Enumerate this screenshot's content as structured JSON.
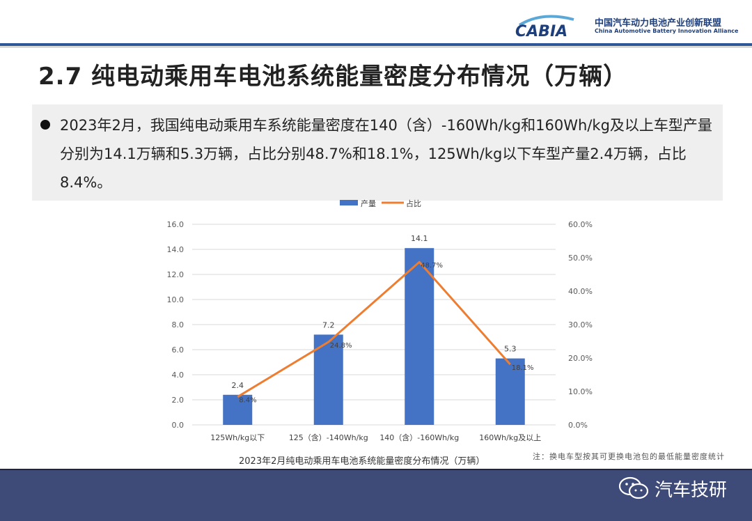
{
  "header": {
    "logo_mark": "CABIA",
    "logo_cn": "中国汽车动力电池产业创新联盟",
    "logo_en": "China Automotive Battery Innovation Alliance"
  },
  "page_title": "2.7 纯电动乘用车电池系统能量密度分布情况（万辆）",
  "summary": {
    "text": "2023年2月，我国纯电动乘用车系统能量密度在140（含）-160Wh/kg和160Wh/kg及以上车型产量分别为14.1万辆和5.3万辆，占比分别48.7%和18.1%，125Wh/kg以下车型产量2.4万辆，占比8.4%。"
  },
  "note": "注：换电车型按其可更换电池包的最低能量密度统计",
  "brand": {
    "name": "汽车技研"
  },
  "colors": {
    "bar": "#4472c4",
    "line": "#ed7d31",
    "header_rule": "#2d5597",
    "footer": "#3e4a78"
  },
  "chart_data": {
    "type": "bar",
    "title": "2023年2月纯电动乘用车电池系统能量密度分布情况（万辆）",
    "categories": [
      "125Wh/kg以下",
      "125（含）-140Wh/kg",
      "140（含）-160Wh/kg",
      "160Wh/kg及以上"
    ],
    "series": [
      {
        "name": "产量",
        "type": "bar",
        "axis": "left",
        "values": [
          2.4,
          7.2,
          14.1,
          5.3
        ],
        "labels": [
          "2.4",
          "7.2",
          "14.1",
          "5.3"
        ]
      },
      {
        "name": "占比",
        "type": "line",
        "axis": "right",
        "values": [
          8.4,
          24.8,
          48.7,
          18.1
        ],
        "labels": [
          "8.4%",
          "24.8%",
          "48.7%",
          "18.1%"
        ]
      }
    ],
    "ylim_left": [
      0,
      16
    ],
    "yticks_left": [
      "0.0",
      "2.0",
      "4.0",
      "6.0",
      "8.0",
      "10.0",
      "12.0",
      "14.0",
      "16.0"
    ],
    "ylim_right": [
      0,
      60
    ],
    "yticks_right": [
      "0.0%",
      "10.0%",
      "20.0%",
      "30.0%",
      "40.0%",
      "50.0%",
      "60.0%"
    ],
    "grid": true,
    "legend": "top-center"
  }
}
